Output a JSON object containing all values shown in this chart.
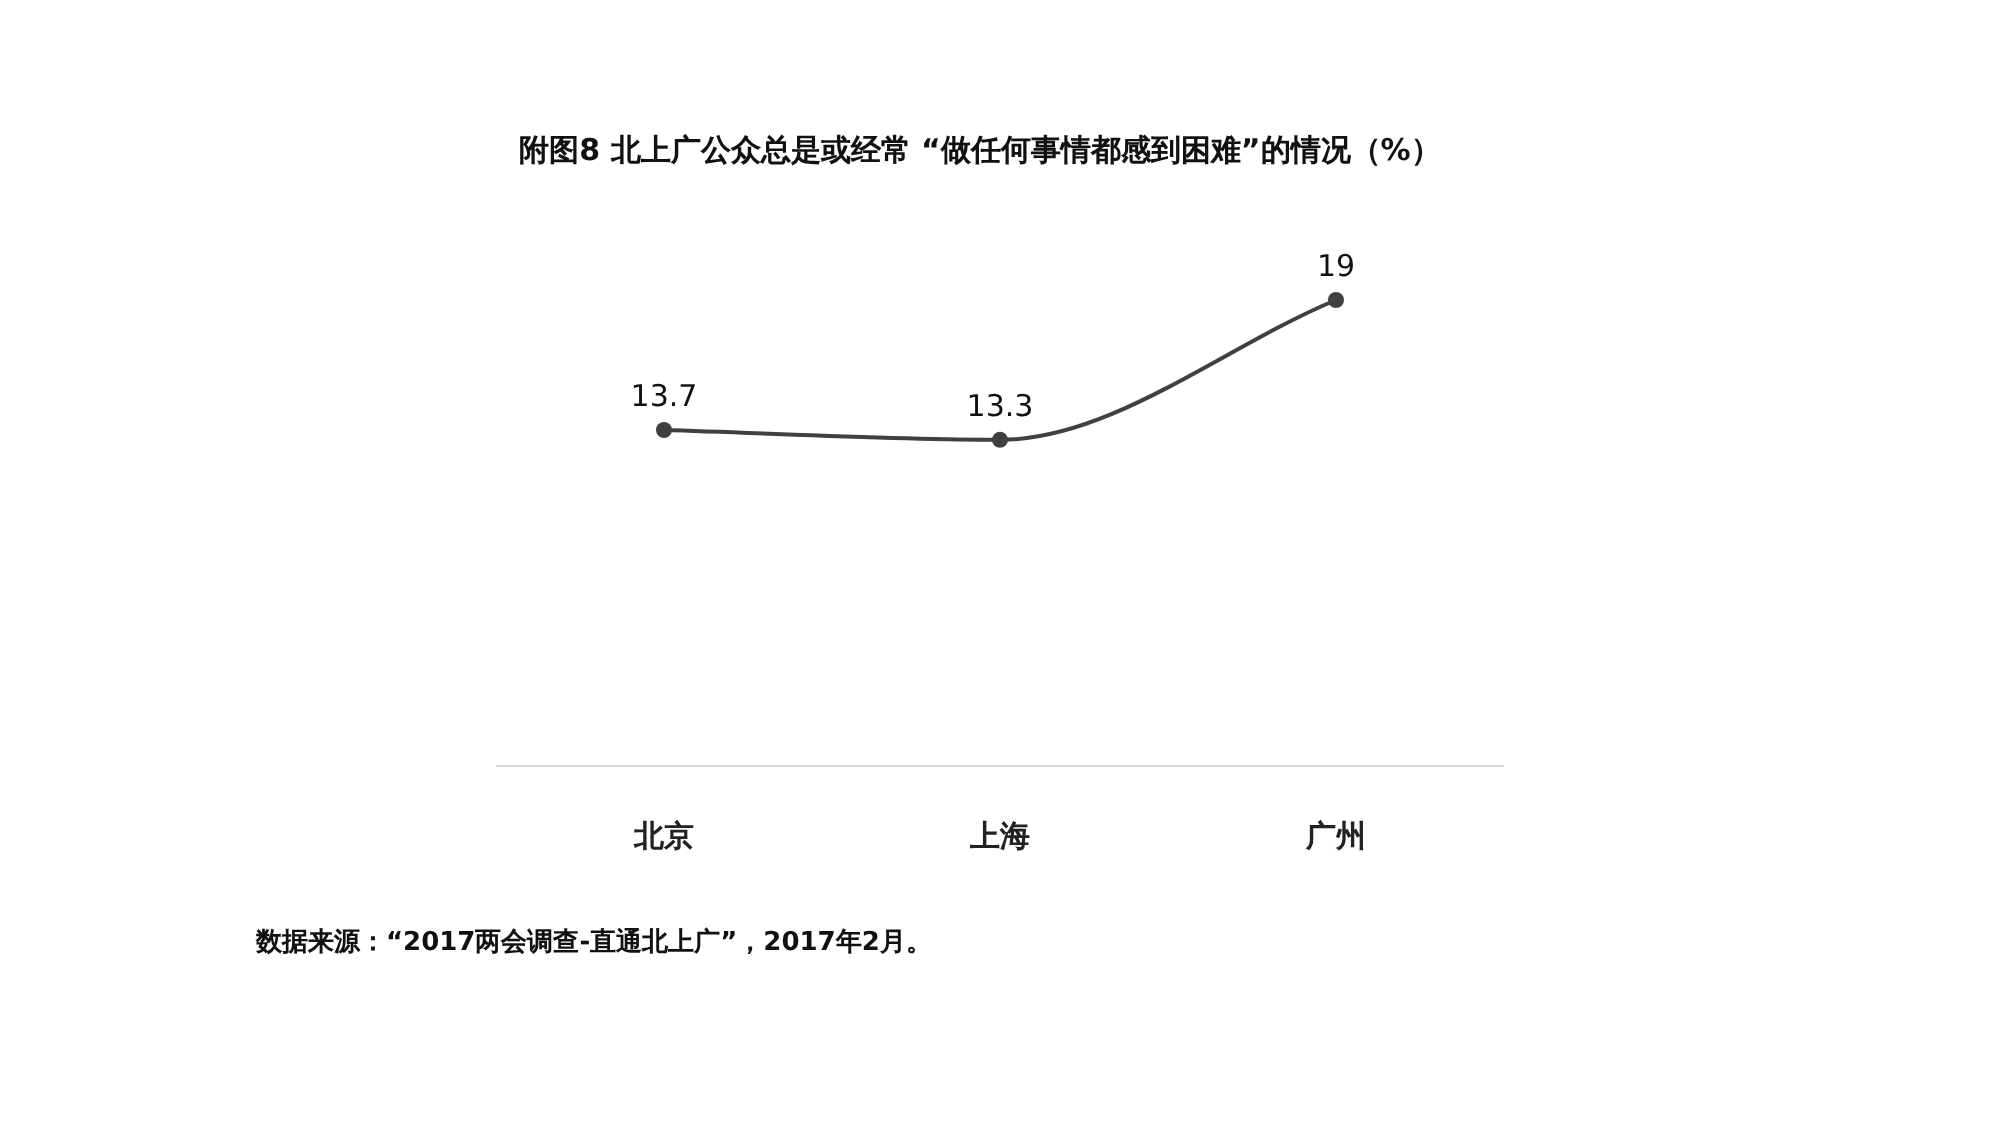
{
  "chart_data": {
    "type": "line",
    "title": "附图8 北上广公众总是或经常 “做任何事情都感到困难”的情况（%）",
    "categories": [
      "北京",
      "上海",
      "广州"
    ],
    "values": [
      13.7,
      13.3,
      19
    ],
    "color": "#404040",
    "marker": "circle",
    "data_labels": true,
    "annotations": [
      "数据来源：“2017两会调查-直通北上广”，2017年2月。"
    ]
  }
}
